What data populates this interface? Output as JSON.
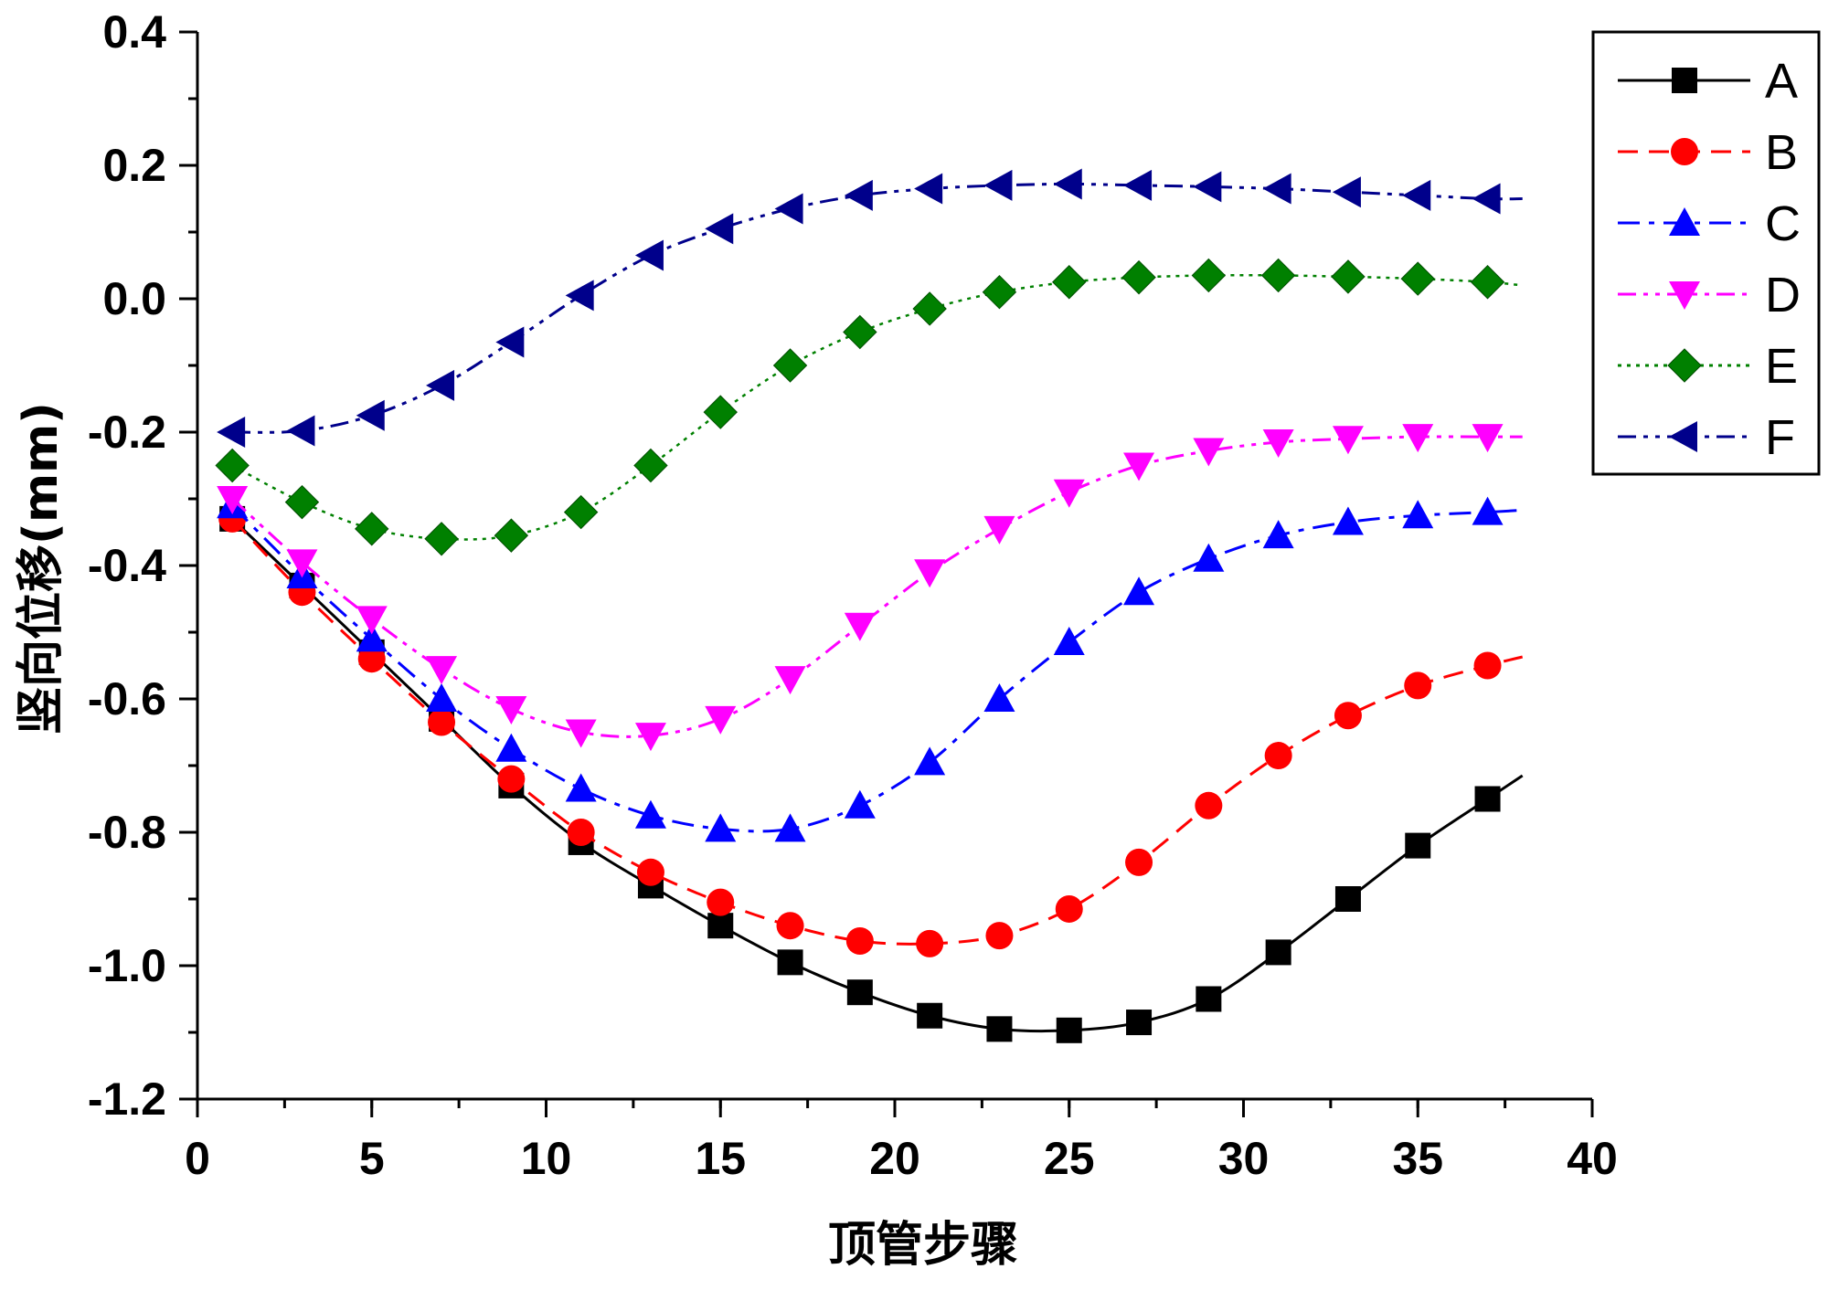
{
  "chart_data": {
    "type": "line",
    "xlabel": "顶管步骤",
    "ylabel": "竖向位移(mm)",
    "xlim": [
      0,
      40
    ],
    "ylim": [
      -1.2,
      0.4
    ],
    "xticks": [
      0,
      5,
      10,
      15,
      20,
      25,
      30,
      35,
      40
    ],
    "xtick_labels": [
      "0",
      "5",
      "10",
      "15",
      "20",
      "25",
      "30",
      "35",
      "40"
    ],
    "yticks": [
      0.4,
      0.2,
      0.0,
      -0.2,
      -0.4,
      -0.6,
      -0.8,
      -1.0,
      -1.2
    ],
    "ytick_labels": [
      "0.4",
      "0.2",
      "0.0",
      "-0.2",
      "-0.4",
      "-0.6",
      "-0.8",
      "-1.0",
      "-1.2"
    ],
    "grid": false,
    "legend_position": "top-right",
    "x": [
      1,
      3,
      5,
      7,
      9,
      11,
      13,
      15,
      17,
      19,
      21,
      23,
      25,
      27,
      29,
      31,
      33,
      35,
      37
    ],
    "x_end": 38,
    "series": [
      {
        "name": "A",
        "color": "#000000",
        "marker": "square",
        "dash": "solid",
        "values": [
          -0.33,
          -0.43,
          -0.53,
          -0.63,
          -0.73,
          -0.815,
          -0.88,
          -0.94,
          -0.995,
          -1.04,
          -1.075,
          -1.095,
          -1.097,
          -1.085,
          -1.05,
          -0.98,
          -0.9,
          -0.82,
          -0.75
        ],
        "end_value": -0.715
      },
      {
        "name": "B",
        "color": "#ff0000",
        "marker": "circle",
        "dash": "dash",
        "values": [
          -0.33,
          -0.44,
          -0.54,
          -0.635,
          -0.72,
          -0.8,
          -0.86,
          -0.905,
          -0.94,
          -0.963,
          -0.967,
          -0.955,
          -0.915,
          -0.845,
          -0.76,
          -0.685,
          -0.625,
          -0.58,
          -0.55
        ],
        "end_value": -0.537
      },
      {
        "name": "C",
        "color": "#0000ff",
        "marker": "triangle-up",
        "dash": "dashdot",
        "values": [
          -0.31,
          -0.415,
          -0.51,
          -0.6,
          -0.675,
          -0.735,
          -0.775,
          -0.795,
          -0.795,
          -0.76,
          -0.695,
          -0.6,
          -0.515,
          -0.44,
          -0.39,
          -0.355,
          -0.335,
          -0.325,
          -0.32
        ],
        "end_value": -0.317
      },
      {
        "name": "D",
        "color": "#ff00ff",
        "marker": "triangle-down",
        "dash": "dashdotdot",
        "values": [
          -0.3,
          -0.395,
          -0.48,
          -0.555,
          -0.615,
          -0.65,
          -0.655,
          -0.63,
          -0.57,
          -0.49,
          -0.41,
          -0.345,
          -0.29,
          -0.25,
          -0.228,
          -0.215,
          -0.21,
          -0.207,
          -0.207
        ],
        "end_value": -0.207
      },
      {
        "name": "E",
        "color": "#008000",
        "marker": "diamond",
        "dash": "dot",
        "values": [
          -0.25,
          -0.305,
          -0.345,
          -0.36,
          -0.355,
          -0.32,
          -0.25,
          -0.17,
          -0.1,
          -0.05,
          -0.015,
          0.01,
          0.025,
          0.032,
          0.035,
          0.035,
          0.033,
          0.03,
          0.025
        ],
        "end_value": 0.02
      },
      {
        "name": "F",
        "color": "#00008b",
        "marker": "triangle-left",
        "dash": "dashdotdot",
        "values": [
          -0.2,
          -0.198,
          -0.175,
          -0.13,
          -0.065,
          0.005,
          0.065,
          0.105,
          0.135,
          0.155,
          0.165,
          0.17,
          0.172,
          0.17,
          0.168,
          0.165,
          0.16,
          0.155,
          0.15
        ],
        "end_value": 0.15
      }
    ]
  }
}
